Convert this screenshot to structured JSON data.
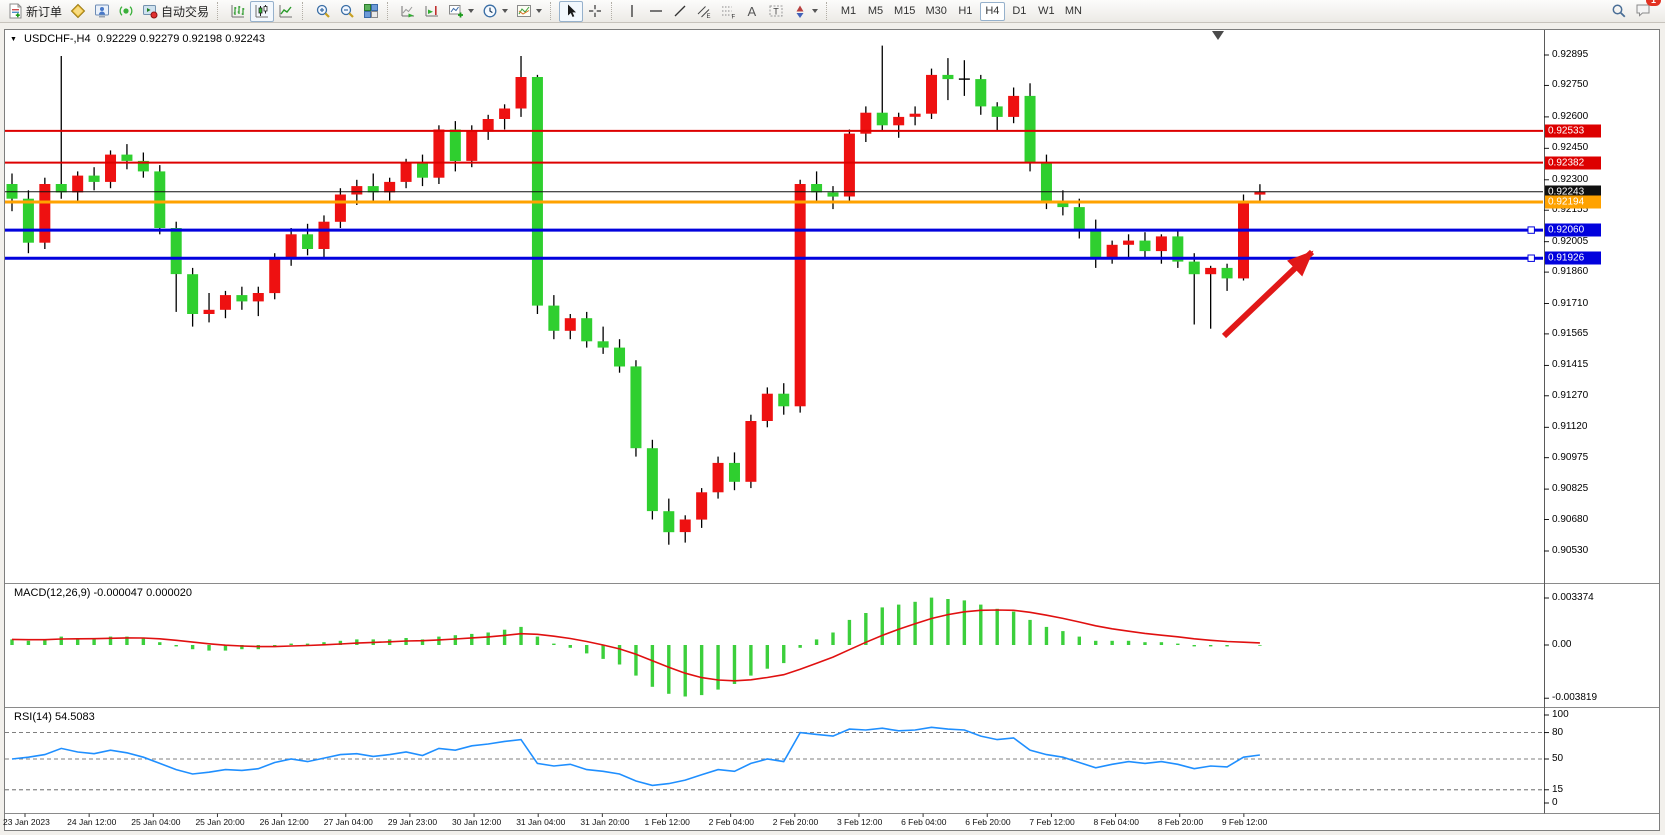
{
  "toolbar": {
    "new_order_label": "新订单",
    "autotrading_label": "自动交易",
    "timeframes": [
      "M1",
      "M5",
      "M15",
      "M30",
      "H1",
      "H4",
      "D1",
      "W1",
      "MN"
    ],
    "active_timeframe": "H4",
    "notification_count": "1",
    "icons": {
      "new_order": "order-ticket",
      "market_watch": "gold-diamond",
      "navigator": "person-monitor",
      "data_window": "signal-rings",
      "autotrading": "window-red-dot",
      "chart_types": [
        "bars-chart",
        "candles-chart",
        "line-chart"
      ],
      "zoom": [
        "zoom-in",
        "zoom-out",
        "tile-windows"
      ],
      "scroll": [
        "auto-scroll",
        "chart-shift"
      ],
      "objects": [
        "new-chart",
        "periods-clock",
        "templates-chart"
      ],
      "pointer": [
        "cursor-arrow",
        "crosshair"
      ],
      "drawing": [
        "vertical-line",
        "horizontal-line",
        "trendline",
        "equidistant-channel",
        "fibonacci",
        "text-a",
        "text-label",
        "arrow-shapes"
      ],
      "right": [
        "search-magnifier",
        "chat-bubble"
      ]
    }
  },
  "chart": {
    "symbol_period": "USDCHF-,H4",
    "ohlc_display": "0.92229 0.92279 0.92198 0.92243"
  },
  "price_axis": {
    "ticks": [
      "0.92895",
      "0.92750",
      "0.92600",
      "0.92450",
      "0.92300",
      "0.92155",
      "0.92005",
      "0.91860",
      "0.91710",
      "0.91565",
      "0.91415",
      "0.91270",
      "0.91120",
      "0.90975",
      "0.90825",
      "0.90680",
      "0.90530"
    ],
    "badges": [
      {
        "label": "0.92533",
        "price": 0.92533,
        "color": "#dd0000"
      },
      {
        "label": "0.92382",
        "price": 0.92382,
        "color": "#dd0000"
      },
      {
        "label": "0.92243",
        "price": 0.92243,
        "color": "#101010"
      },
      {
        "label": "0.92194",
        "price": 0.92194,
        "color": "#ffa200"
      },
      {
        "label": "0.92060",
        "price": 0.9206,
        "color": "#0202dd"
      },
      {
        "label": "0.91926",
        "price": 0.91926,
        "color": "#0202dd"
      }
    ]
  },
  "time_axis": {
    "labels": [
      "23 Jan 2023",
      "24 Jan 12:00",
      "25 Jan 04:00",
      "25 Jan 20:00",
      "26 Jan 12:00",
      "27 Jan 04:00",
      "29 Jan 23:00",
      "30 Jan 12:00",
      "31 Jan 04:00",
      "31 Jan 20:00",
      "1 Feb 12:00",
      "2 Feb 04:00",
      "2 Feb 20:00",
      "3 Feb 12:00",
      "6 Feb 04:00",
      "6 Feb 20:00",
      "7 Feb 12:00",
      "8 Feb 04:00",
      "8 Feb 20:00",
      "9 Feb 12:00"
    ]
  },
  "indicators": {
    "macd": {
      "label": "MACD(12,26,9)",
      "values_text": "-0.000047 0.000020",
      "axis": [
        [
          "0.003374",
          0.003374
        ],
        [
          "0.00",
          0
        ],
        [
          "-0.003819",
          -0.003819
        ]
      ]
    },
    "rsi": {
      "label": "RSI(14)",
      "value_text": "54.5083",
      "axis": [
        [
          "100",
          100
        ],
        [
          "80",
          80
        ],
        [
          "50",
          50
        ],
        [
          "15",
          15
        ],
        [
          "0",
          0
        ]
      ],
      "levels": [
        80,
        50,
        15
      ]
    }
  },
  "chart_data": {
    "type": "candlestick",
    "symbol": "USDCHF-",
    "timeframe": "H4",
    "ylim": [
      0.90378,
      0.93014
    ],
    "candles": [
      [
        0.9228,
        0.9233,
        0.9215,
        0.9221
      ],
      [
        0.9221,
        0.9225,
        0.9195,
        0.92
      ],
      [
        0.92,
        0.9231,
        0.9197,
        0.9228
      ],
      [
        0.9228,
        0.9289,
        0.9221,
        0.9224
      ],
      [
        0.9224,
        0.9234,
        0.9219,
        0.9232
      ],
      [
        0.9232,
        0.9236,
        0.9225,
        0.9229
      ],
      [
        0.9229,
        0.9244,
        0.9226,
        0.9242
      ],
      [
        0.9242,
        0.9247,
        0.9235,
        0.9239
      ],
      [
        0.9239,
        0.9243,
        0.9231,
        0.9234
      ],
      [
        0.9234,
        0.9237,
        0.9204,
        0.9207
      ],
      [
        0.9207,
        0.921,
        0.9167,
        0.9185
      ],
      [
        0.9185,
        0.9188,
        0.916,
        0.9166
      ],
      [
        0.9166,
        0.9176,
        0.9162,
        0.9168
      ],
      [
        0.9168,
        0.9177,
        0.9164,
        0.9175
      ],
      [
        0.9175,
        0.9179,
        0.9168,
        0.9172
      ],
      [
        0.9172,
        0.9179,
        0.9165,
        0.9176
      ],
      [
        0.9176,
        0.9195,
        0.9173,
        0.9192
      ],
      [
        0.9192,
        0.9207,
        0.9189,
        0.9204
      ],
      [
        0.9204,
        0.9209,
        0.9194,
        0.9197
      ],
      [
        0.9197,
        0.9213,
        0.9193,
        0.921
      ],
      [
        0.921,
        0.9226,
        0.9207,
        0.9223
      ],
      [
        0.9223,
        0.923,
        0.9218,
        0.9227
      ],
      [
        0.9227,
        0.9233,
        0.922,
        0.9224
      ],
      [
        0.9224,
        0.9231,
        0.9219,
        0.9229
      ],
      [
        0.9229,
        0.924,
        0.9226,
        0.9238
      ],
      [
        0.9238,
        0.9242,
        0.9227,
        0.9231
      ],
      [
        0.9231,
        0.9256,
        0.9228,
        0.9254
      ],
      [
        0.9254,
        0.9258,
        0.9234,
        0.9239
      ],
      [
        0.9239,
        0.9256,
        0.9236,
        0.9253
      ],
      [
        0.9253,
        0.9261,
        0.9249,
        0.9259
      ],
      [
        0.9259,
        0.9266,
        0.9254,
        0.9264
      ],
      [
        0.9264,
        0.9289,
        0.926,
        0.9279
      ],
      [
        0.9279,
        0.928,
        0.9166,
        0.917
      ],
      [
        0.917,
        0.9175,
        0.9154,
        0.9158
      ],
      [
        0.9158,
        0.9166,
        0.9154,
        0.9164
      ],
      [
        0.9164,
        0.9167,
        0.915,
        0.9153
      ],
      [
        0.9153,
        0.916,
        0.9147,
        0.915
      ],
      [
        0.915,
        0.9154,
        0.9138,
        0.9141
      ],
      [
        0.9141,
        0.9144,
        0.9098,
        0.9102
      ],
      [
        0.9102,
        0.9106,
        0.9068,
        0.9072
      ],
      [
        0.9072,
        0.9078,
        0.9056,
        0.9062
      ],
      [
        0.9062,
        0.907,
        0.9057,
        0.9068
      ],
      [
        0.9068,
        0.9083,
        0.9064,
        0.9081
      ],
      [
        0.9081,
        0.9098,
        0.9078,
        0.9095
      ],
      [
        0.9095,
        0.91,
        0.9082,
        0.9086
      ],
      [
        0.9086,
        0.9118,
        0.9083,
        0.9115
      ],
      [
        0.9115,
        0.9131,
        0.9112,
        0.9128
      ],
      [
        0.9128,
        0.9133,
        0.9118,
        0.9122
      ],
      [
        0.9122,
        0.923,
        0.9119,
        0.9228
      ],
      [
        0.9228,
        0.9234,
        0.922,
        0.9224
      ],
      [
        0.9224,
        0.9227,
        0.9216,
        0.9222
      ],
      [
        0.9222,
        0.9254,
        0.9219,
        0.9252
      ],
      [
        0.9252,
        0.9265,
        0.9248,
        0.9262
      ],
      [
        0.9262,
        0.9294,
        0.9253,
        0.9256
      ],
      [
        0.9256,
        0.9262,
        0.925,
        0.926
      ],
      [
        0.926,
        0.9265,
        0.9256,
        0.92615
      ],
      [
        0.92615,
        0.9283,
        0.9259,
        0.928
      ],
      [
        0.928,
        0.9288,
        0.9268,
        0.9278
      ],
      [
        0.9278,
        0.9287,
        0.927,
        0.9278
      ],
      [
        0.9278,
        0.928,
        0.9261,
        0.9265
      ],
      [
        0.9265,
        0.9267,
        0.9253,
        0.926
      ],
      [
        0.926,
        0.9274,
        0.9257,
        0.927
      ],
      [
        0.927,
        0.9276,
        0.9234,
        0.9238
      ],
      [
        0.9238,
        0.9242,
        0.9216,
        0.922
      ],
      [
        0.922,
        0.9225,
        0.9213,
        0.9217
      ],
      [
        0.9217,
        0.9221,
        0.9202,
        0.9206
      ],
      [
        0.9206,
        0.9211,
        0.9188,
        0.9193
      ],
      [
        0.9193,
        0.9201,
        0.919,
        0.9199
      ],
      [
        0.9199,
        0.9204,
        0.9193,
        0.9201
      ],
      [
        0.9201,
        0.9205,
        0.9193,
        0.9196
      ],
      [
        0.9196,
        0.9204,
        0.919,
        0.9203
      ],
      [
        0.9203,
        0.9206,
        0.9188,
        0.9191
      ],
      [
        0.9191,
        0.9195,
        0.9161,
        0.9185
      ],
      [
        0.9185,
        0.9189,
        0.9159,
        0.9188
      ],
      [
        0.9188,
        0.919,
        0.9177,
        0.9183
      ],
      [
        0.9183,
        0.9223,
        0.9182,
        0.9219
      ],
      [
        0.92229,
        0.92279,
        0.92198,
        0.92243
      ]
    ],
    "horizontal_lines": [
      {
        "price": 0.92533,
        "color": "#dd0000",
        "width": 2
      },
      {
        "price": 0.92382,
        "color": "#dd0000",
        "width": 2
      },
      {
        "price": 0.92243,
        "color": "#101010",
        "width": 1
      },
      {
        "price": 0.92194,
        "color": "#ffa200",
        "width": 3
      },
      {
        "price": 0.9206,
        "color": "#0202dd",
        "width": 3,
        "handle": true
      },
      {
        "price": 0.91926,
        "color": "#0202dd",
        "width": 3,
        "handle": true
      }
    ],
    "macd_histogram": [
      0.0004,
      0.0003,
      0.0004,
      0.0006,
      0.0005,
      0.0005,
      0.0006,
      0.0006,
      0.0005,
      0.0002,
      -0.0001,
      -0.0003,
      -0.0004,
      -0.0004,
      -0.0003,
      -0.0003,
      -0.0001,
      0.0001,
      0.0001,
      0.0002,
      0.0003,
      0.0004,
      0.0004,
      0.0004,
      0.0005,
      0.0004,
      0.0006,
      0.0007,
      0.0008,
      0.0009,
      0.0011,
      0.0013,
      0.0006,
      0.0001,
      -0.0002,
      -0.0006,
      -0.001,
      -0.0014,
      -0.0022,
      -0.003,
      -0.0035,
      -0.0037,
      -0.0036,
      -0.0032,
      -0.0028,
      -0.0022,
      -0.0017,
      -0.0013,
      -0.0002,
      0.0004,
      0.0009,
      0.0018,
      0.0023,
      0.0027,
      0.0029,
      0.0031,
      0.0034,
      0.0033,
      0.0032,
      0.0029,
      0.0026,
      0.0024,
      0.0018,
      0.0013,
      0.001,
      0.0006,
      0.0003,
      0.0003,
      0.0003,
      0.0002,
      0.0002,
      0.0001,
      -0.0001,
      -0.0001,
      -0.0001,
      0.0,
      -4.7e-05
    ],
    "rsi_values": [
      50,
      52,
      55,
      62,
      58,
      56,
      60,
      57,
      52,
      45,
      38,
      33,
      35,
      38,
      37,
      39,
      46,
      50,
      47,
      51,
      55,
      56,
      53,
      55,
      58,
      54,
      62,
      60,
      65,
      67,
      70,
      72,
      45,
      42,
      44,
      38,
      36,
      33,
      25,
      20,
      22,
      26,
      32,
      38,
      36,
      45,
      50,
      47,
      80,
      78,
      76,
      84,
      83,
      85,
      82,
      83,
      86,
      84,
      83,
      76,
      72,
      74,
      60,
      55,
      52,
      46,
      40,
      44,
      47,
      45,
      47,
      44,
      39,
      42,
      41,
      52,
      54.5
    ]
  },
  "annotations": {
    "arrow": {
      "from": [
        1224,
        336
      ],
      "to": [
        1312,
        252
      ],
      "color": "#e11818"
    }
  },
  "colors": {
    "bull": "#ee1111",
    "bear": "#2fcf2f",
    "macd_hist": "#3ccf3c",
    "macd_signal": "#e01010",
    "rsi_line": "#1f8fff",
    "wick": "#000000"
  }
}
